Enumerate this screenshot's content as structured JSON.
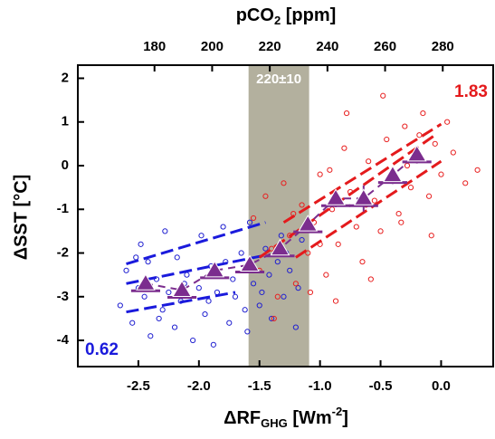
{
  "chart_data": {
    "type": "scatter",
    "top_axis_label": {
      "main": "pCO",
      "sub": "2",
      "rest": " [ppm]"
    },
    "x_label": {
      "main": "ΔRF",
      "sub": "GHG",
      "unit": " [Wm",
      "sup": "-2",
      "end": "]"
    },
    "y_label": "ΔSST [°C]",
    "xlim": [
      -3.0,
      0.43
    ],
    "xticks": [
      -2.5,
      {
        "value": -2.0,
        "label": "-2.0"
      },
      -1.5,
      {
        "value": -1.0,
        "label": "-1.0"
      },
      -0.5,
      {
        "value": 0.0,
        "label": "0.0"
      }
    ],
    "ylim": [
      -4.6,
      2.3
    ],
    "yticks": [
      -4,
      -3,
      -2,
      -1,
      0,
      1,
      2
    ],
    "x2lim": [
      153.4,
      297.5
    ],
    "x2ticks": [
      180,
      200,
      220,
      240,
      260,
      280
    ],
    "band": {
      "range": [
        -1.59,
        -1.09
      ],
      "label": "220±10",
      "color": "#b3b09e"
    },
    "annotations": [
      {
        "text": "0.62",
        "color": "#1a1adc"
      },
      {
        "text": "1.83",
        "color": "#e41a1c"
      }
    ],
    "series": [
      {
        "color": "#2020d0",
        "x": [
          -2.65,
          -2.6,
          -2.55,
          -2.5,
          -2.48,
          -2.45,
          -2.42,
          -2.4,
          -2.35,
          -2.3,
          -2.28,
          -2.25,
          -2.2,
          -2.18,
          -2.15,
          -2.1,
          -2.05,
          -2.0,
          -1.98,
          -1.95,
          -1.9,
          -1.88,
          -1.85,
          -1.8,
          -1.75,
          -1.72,
          -1.7,
          -1.65,
          -1.6,
          -1.58,
          -1.55,
          -1.5,
          -1.45,
          -1.42,
          -1.4,
          -1.35,
          -1.32,
          -1.3,
          -1.25,
          -1.2,
          -1.18,
          -1.15,
          -2.52,
          -2.33,
          -2.12,
          -1.92,
          -1.78,
          -1.62,
          -1.48,
          -1.28
        ],
        "values": [
          -3.2,
          -2.4,
          -3.6,
          -2.8,
          -1.8,
          -3.0,
          -2.2,
          -3.9,
          -2.6,
          -3.3,
          -1.5,
          -2.9,
          -3.7,
          -2.1,
          -3.1,
          -2.5,
          -4.0,
          -2.8,
          -1.6,
          -3.4,
          -2.3,
          -4.1,
          -2.9,
          -1.4,
          -3.6,
          -2.6,
          -3.0,
          -2.0,
          -3.8,
          -1.3,
          -2.7,
          -3.2,
          -1.9,
          -2.5,
          -3.5,
          -2.2,
          -1.6,
          -3.0,
          -2.4,
          -3.7,
          -2.8,
          -1.7,
          -2.1,
          -3.5,
          -2.7,
          -3.1,
          -2.2,
          -3.3,
          -2.9,
          -2.0
        ]
      },
      {
        "color": "#e82020",
        "x": [
          -1.55,
          -1.5,
          -1.45,
          -1.4,
          -1.35,
          -1.3,
          -1.25,
          -1.2,
          -1.15,
          -1.1,
          -1.05,
          -1.0,
          -0.95,
          -0.9,
          -0.85,
          -0.8,
          -0.75,
          -0.7,
          -0.65,
          -0.6,
          -0.55,
          -0.5,
          -0.45,
          -0.4,
          -0.35,
          -0.3,
          -0.25,
          -0.2,
          -0.15,
          -0.1,
          -0.05,
          0.0,
          0.05,
          0.1,
          0.2,
          0.3,
          -1.38,
          -1.22,
          -1.08,
          -0.92,
          -0.78,
          -0.62,
          -0.48,
          -0.33,
          -0.18,
          -0.08,
          -0.58,
          -0.87,
          -0.28,
          -1.0
        ],
        "values": [
          -1.2,
          -2.4,
          -0.7,
          -1.9,
          -3.0,
          -0.4,
          -1.6,
          -2.7,
          -0.9,
          -2.0,
          -1.3,
          -0.2,
          -2.5,
          -1.0,
          -1.8,
          0.4,
          -0.6,
          -1.4,
          -2.2,
          0.1,
          -0.8,
          -1.5,
          0.6,
          -0.3,
          -1.1,
          0.9,
          -0.5,
          0.2,
          1.2,
          -0.7,
          0.5,
          -0.2,
          1.0,
          0.3,
          -0.4,
          -0.1,
          -3.5,
          -1.1,
          -2.9,
          -0.1,
          1.2,
          -0.9,
          1.6,
          -1.3,
          0.7,
          -1.6,
          -2.6,
          -3.1,
          0.0,
          -1.8
        ]
      },
      {
        "color": "#7b2d8e",
        "x": [
          -2.44,
          -2.14,
          -1.87,
          -1.58,
          -1.33,
          -1.1,
          -0.87,
          -0.64,
          -0.4,
          -0.2
        ],
        "values": [
          -2.7,
          -2.85,
          -2.4,
          -2.27,
          -1.9,
          -1.35,
          -0.75,
          -0.75,
          -0.22,
          0.25
        ],
        "xerr": [
          0.12,
          0.12,
          0.12,
          0.12,
          0.12,
          0.12,
          0.12,
          0.12,
          0.12,
          0.12
        ],
        "yerr": [
          0.12,
          0.15,
          0.12,
          0.12,
          0.15,
          0.15,
          0.2,
          0.3,
          0.2,
          0.2
        ]
      }
    ],
    "fits": [
      {
        "color": "#1a1adc",
        "x": [
          -2.6,
          -1.45
        ],
        "values": [
          -2.7,
          -2.05
        ]
      },
      {
        "color": "#1a1adc",
        "x": [
          -2.6,
          -1.45
        ],
        "values": [
          -2.25,
          -1.3
        ]
      },
      {
        "color": "#1a1adc",
        "x": [
          -2.6,
          -1.7
        ],
        "values": [
          -3.35,
          -2.9
        ]
      },
      {
        "color": "#e41a1c",
        "x": [
          -1.5,
          -0.05
        ],
        "values": [
          -2.1,
          0.7
        ]
      },
      {
        "color": "#e41a1c",
        "x": [
          -1.3,
          0.0
        ],
        "values": [
          -1.3,
          0.95
        ]
      },
      {
        "color": "#e41a1c",
        "x": [
          -1.2,
          0.0
        ],
        "values": [
          -2.1,
          0.1
        ]
      }
    ]
  }
}
